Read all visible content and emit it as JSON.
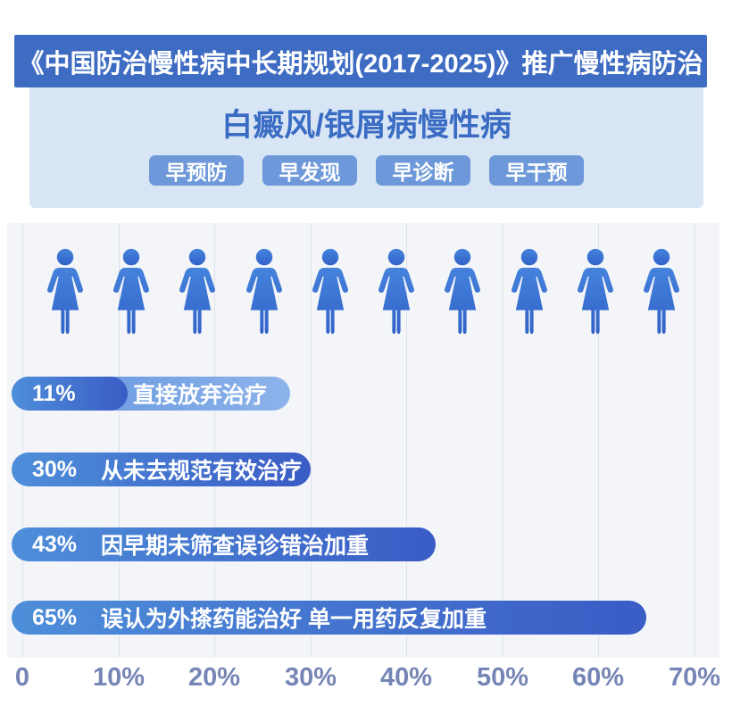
{
  "header": {
    "title": "《中国防治慢性病中长期规划(2017-2025)》推广慢性病防治"
  },
  "panel": {
    "title": "白癜风/银屑病慢性病",
    "buttons": [
      {
        "label": "早预防"
      },
      {
        "label": "早发现"
      },
      {
        "label": "早诊断"
      },
      {
        "label": "早干预"
      }
    ]
  },
  "pictogram": {
    "icon": "female-person-icon",
    "count": 10
  },
  "chart_data": {
    "type": "bar",
    "orientation": "horizontal",
    "categories": [
      "直接放弃治疗",
      "从未去规范有效治疗",
      "因早期未筛查误诊错治加重",
      "误认为外搽药能治好 单一用药反复加重"
    ],
    "values": [
      11,
      30,
      43,
      65
    ],
    "value_labels": [
      "11%",
      "30%",
      "43%",
      "65%"
    ],
    "x_ticks": [
      "0",
      "10%",
      "20%",
      "30%",
      "40%",
      "50%",
      "60%",
      "70%"
    ],
    "xlim": [
      0,
      70
    ],
    "grid": true,
    "legend": "none"
  },
  "colors": {
    "banner_bg": "#3e6cc3",
    "panel_bg": "#d8e5f5",
    "title_text": "#3a6cc4",
    "tag_button_bg": "#6d98d9",
    "bar_gradient_start": "#4e8ed9",
    "bar_gradient_end": "#3a5cc5",
    "label_pill_start": "#5f93de",
    "label_pill_end": "#8db3ea",
    "person_icon_top": "#4583dc",
    "person_icon_bottom": "#3162c8",
    "axis_text": "#7585b5",
    "gridline": "#dde3ee",
    "plot_bg": "#f3f5f9"
  }
}
